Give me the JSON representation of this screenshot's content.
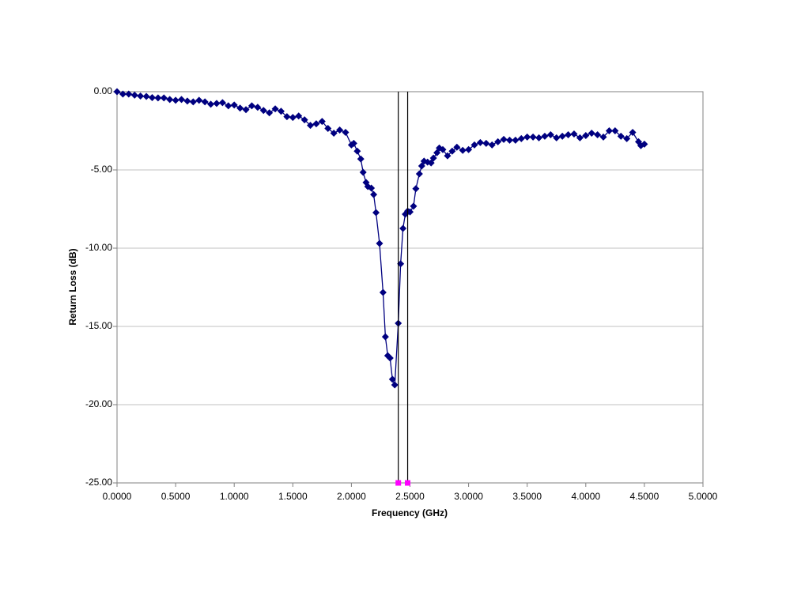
{
  "chart_data": {
    "type": "line",
    "x_label": "Frequency (GHz)",
    "y_label": "Return Loss (dB)",
    "xlim": [
      0,
      5
    ],
    "ylim": [
      -25,
      0
    ],
    "xticks": [
      {
        "value": 0,
        "label": "0.0000"
      },
      {
        "value": 0.5,
        "label": "0.5000"
      },
      {
        "value": 1,
        "label": "1.0000"
      },
      {
        "value": 1.5,
        "label": "1.5000"
      },
      {
        "value": 2,
        "label": "2.0000"
      },
      {
        "value": 2.5,
        "label": "2.5000"
      },
      {
        "value": 3,
        "label": "3.0000"
      },
      {
        "value": 3.5,
        "label": "3.5000"
      },
      {
        "value": 4,
        "label": "4.0000"
      },
      {
        "value": 4.5,
        "label": "4.5000"
      },
      {
        "value": 5,
        "label": "5.0000"
      }
    ],
    "yticks": [
      {
        "value": -25,
        "label": "-25.00"
      },
      {
        "value": -20,
        "label": "-20.00"
      },
      {
        "value": -15,
        "label": "-15.00"
      },
      {
        "value": -10,
        "label": "-10.00"
      },
      {
        "value": -5,
        "label": "-5.00"
      },
      {
        "value": 0,
        "label": "0.00"
      }
    ],
    "grid": "horizontal",
    "series": [
      {
        "color": "#000080",
        "marker": "diamond",
        "line": true,
        "x": [
          0,
          0.05,
          0.1,
          0.15,
          0.2,
          0.25,
          0.3,
          0.35,
          0.4,
          0.45,
          0.5,
          0.55,
          0.6,
          0.65,
          0.7,
          0.75,
          0.8,
          0.85,
          0.9,
          0.95,
          1.0,
          1.05,
          1.1,
          1.15,
          1.2,
          1.25,
          1.3,
          1.35,
          1.4,
          1.45,
          1.5,
          1.55,
          1.6,
          1.65,
          1.7,
          1.75,
          1.8,
          1.85,
          1.9,
          1.95,
          2.0,
          2.02,
          2.05,
          2.08,
          2.1,
          2.125,
          2.14,
          2.17,
          2.19,
          2.21,
          2.24,
          2.27,
          2.29,
          2.31,
          2.33,
          2.35,
          2.37,
          2.4,
          2.42,
          2.44,
          2.46,
          2.48,
          2.5,
          2.53,
          2.55,
          2.58,
          2.6,
          2.62,
          2.65,
          2.68,
          2.7,
          2.73,
          2.75,
          2.78,
          2.82,
          2.86,
          2.9,
          2.95,
          3.0,
          3.05,
          3.1,
          3.15,
          3.2,
          3.25,
          3.3,
          3.35,
          3.4,
          3.45,
          3.5,
          3.55,
          3.6,
          3.65,
          3.7,
          3.75,
          3.8,
          3.85,
          3.9,
          3.95,
          4.0,
          4.05,
          4.1,
          4.15,
          4.2,
          4.25,
          4.3,
          4.35,
          4.4,
          4.45,
          4.47,
          4.5
        ],
        "values": [
          0,
          -0.15,
          -0.15,
          -0.22,
          -0.28,
          -0.3,
          -0.38,
          -0.4,
          -0.4,
          -0.5,
          -0.55,
          -0.5,
          -0.6,
          -0.65,
          -0.55,
          -0.65,
          -0.8,
          -0.75,
          -0.7,
          -0.9,
          -0.85,
          -1.05,
          -1.15,
          -0.9,
          -1.0,
          -1.2,
          -1.35,
          -1.1,
          -1.25,
          -1.6,
          -1.65,
          -1.55,
          -1.8,
          -2.15,
          -2.05,
          -1.9,
          -2.35,
          -2.65,
          -2.45,
          -2.6,
          -3.4,
          -3.3,
          -3.8,
          -4.3,
          -5.15,
          -5.8,
          -6.06,
          -6.16,
          -6.57,
          -7.73,
          -9.7,
          -12.83,
          -15.66,
          -16.87,
          -17.02,
          -18.38,
          -18.74,
          -14.8,
          -11.0,
          -8.74,
          -7.83,
          -7.63,
          -7.68,
          -7.32,
          -6.2,
          -5.25,
          -4.75,
          -4.44,
          -4.5,
          -4.55,
          -4.24,
          -3.9,
          -3.6,
          -3.7,
          -4.1,
          -3.8,
          -3.55,
          -3.75,
          -3.7,
          -3.4,
          -3.25,
          -3.3,
          -3.4,
          -3.2,
          -3.05,
          -3.1,
          -3.1,
          -3.0,
          -2.9,
          -2.9,
          -2.95,
          -2.85,
          -2.75,
          -2.95,
          -2.85,
          -2.75,
          -2.7,
          -2.95,
          -2.8,
          -2.65,
          -2.75,
          -2.9,
          -2.5,
          -2.5,
          -2.85,
          -3.0,
          -2.6,
          -3.2,
          -3.45,
          -3.35
        ]
      },
      {
        "color": "#ff00ff",
        "marker": "square",
        "line": false,
        "drop_lines": true,
        "x": [
          2.4,
          2.48
        ],
        "values": [
          -25,
          -25
        ]
      }
    ]
  }
}
